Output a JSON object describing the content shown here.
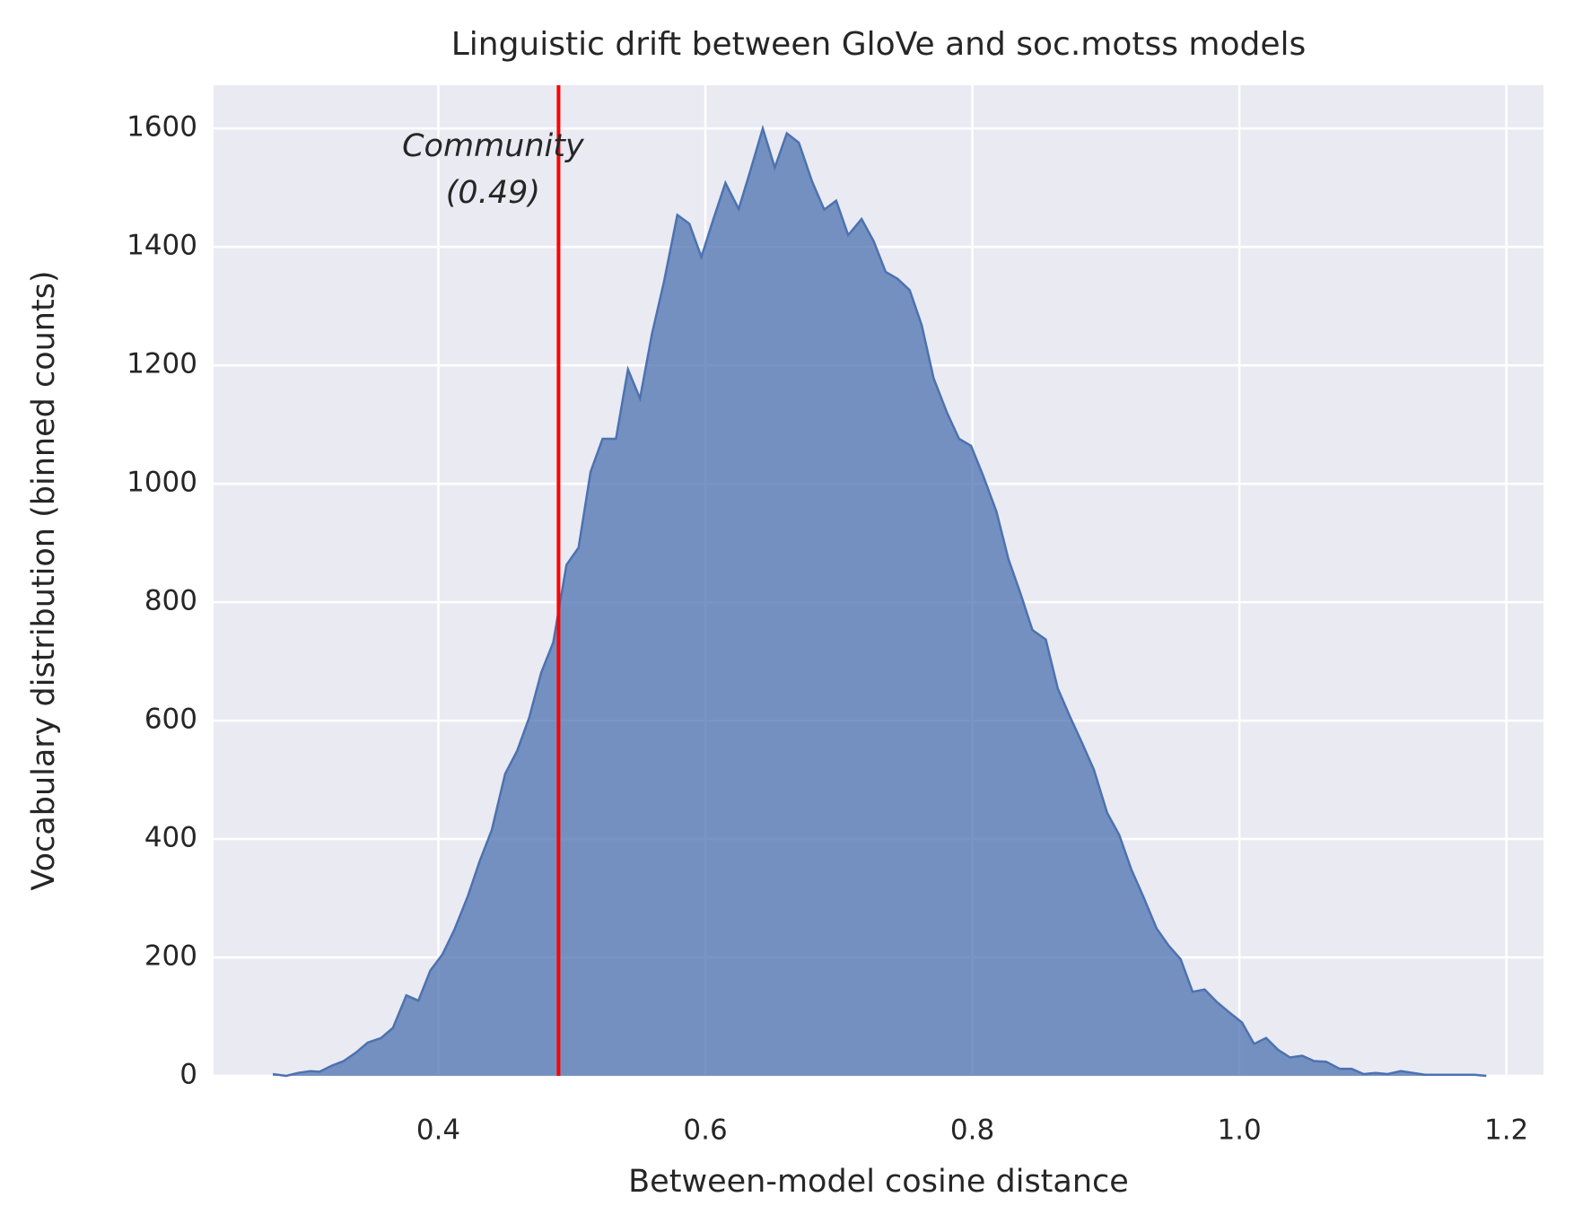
{
  "chart_data": {
    "type": "area",
    "title": "Linguistic drift between GloVe and soc.motss models",
    "xlabel": "Between-model cosine distance",
    "ylabel": "Vocabulary distribution (binned counts)",
    "x": [
      0.276,
      0.286,
      0.295,
      0.304,
      0.311,
      0.32,
      0.329,
      0.338,
      0.347,
      0.357,
      0.366,
      0.376,
      0.385,
      0.394,
      0.403,
      0.412,
      0.422,
      0.431,
      0.44,
      0.45,
      0.459,
      0.468,
      0.477,
      0.486,
      0.496,
      0.505,
      0.514,
      0.523,
      0.533,
      0.542,
      0.551,
      0.56,
      0.569,
      0.579,
      0.588,
      0.597,
      0.606,
      0.615,
      0.625,
      0.634,
      0.643,
      0.652,
      0.661,
      0.67,
      0.68,
      0.689,
      0.698,
      0.707,
      0.717,
      0.726,
      0.735,
      0.744,
      0.753,
      0.762,
      0.771,
      0.781,
      0.79,
      0.799,
      0.808,
      0.818,
      0.827,
      0.836,
      0.845,
      0.855,
      0.864,
      0.873,
      0.882,
      0.891,
      0.901,
      0.91,
      0.919,
      0.928,
      0.938,
      0.947,
      0.956,
      0.965,
      0.974,
      0.983,
      0.992,
      1.002,
      1.011,
      1.02,
      1.029,
      1.038,
      1.047,
      1.056,
      1.065,
      1.075,
      1.084,
      1.093,
      1.102,
      1.111,
      1.121,
      1.13,
      1.139,
      1.148,
      1.157,
      1.166,
      1.176,
      1.185
    ],
    "series": [
      {
        "color": "#4c72b0",
        "values": [
          3,
          0,
          5,
          8,
          7,
          17,
          25,
          39,
          56,
          64,
          81,
          136,
          127,
          178,
          205,
          247,
          303,
          363,
          415,
          510,
          549,
          605,
          681,
          732,
          863,
          892,
          1020,
          1076,
          1076,
          1193,
          1144,
          1253,
          1341,
          1454,
          1439,
          1383,
          1447,
          1508,
          1464,
          1531,
          1600,
          1534,
          1592,
          1576,
          1510,
          1463,
          1478,
          1420,
          1447,
          1410,
          1358,
          1346,
          1327,
          1268,
          1178,
          1120,
          1076,
          1064,
          1014,
          953,
          873,
          815,
          753,
          737,
          654,
          607,
          563,
          517,
          444,
          407,
          349,
          303,
          249,
          220,
          197,
          142,
          146,
          125,
          108,
          90,
          54,
          64,
          44,
          31,
          34,
          25,
          24,
          12,
          12,
          3,
          5,
          3,
          8,
          5,
          2,
          2,
          2,
          2,
          2,
          0
        ]
      }
    ],
    "vline": {
      "x": 0.49,
      "color": "#ff0000",
      "label": [
        "Community",
        "(0.49)"
      ]
    },
    "xlim": [
      0.2316,
      1.2278
    ],
    "ylim": [
      0,
      1673
    ],
    "xticks": [
      0.4,
      0.6,
      0.8,
      {
        "value": 1.0,
        "label": "1.0"
      },
      1.2
    ],
    "yticks": [
      0,
      200,
      400,
      600,
      800,
      1000,
      1200,
      1400,
      1600
    ],
    "grid": true
  }
}
